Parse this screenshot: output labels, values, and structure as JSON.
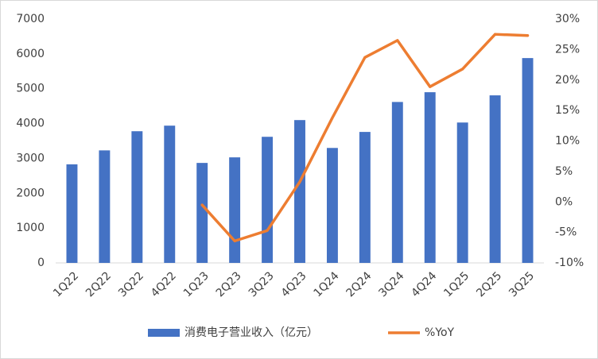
{
  "chart_data": {
    "type": "bar_line",
    "categories": [
      "1Q22",
      "2Q22",
      "3Q22",
      "4Q22",
      "1Q23",
      "2Q23",
      "3Q23",
      "4Q23",
      "1Q24",
      "2Q24",
      "3Q24",
      "4Q24",
      "1Q25",
      "2Q25",
      "3Q25"
    ],
    "series": [
      {
        "name": "消费电子营业收入（亿元）",
        "color": "#4472c4",
        "type": "bar",
        "values": [
          2830,
          3230,
          3780,
          3940,
          2870,
          3030,
          3620,
          4100,
          3300,
          3760,
          4620,
          4900,
          4030,
          4810,
          5880
        ]
      },
      {
        "name": "%YoY",
        "color": "#ed7d31",
        "type": "line",
        "axis": "y2",
        "values": [
          null,
          null,
          null,
          null,
          -0.5,
          -6.4,
          -4.7,
          3.3,
          13.8,
          23.7,
          26.5,
          18.9,
          21.8,
          27.5,
          27.3
        ]
      }
    ],
    "ylim": [
      0,
      7000
    ],
    "yticks": [
      0,
      1000,
      2000,
      3000,
      4000,
      5000,
      6000,
      7000
    ],
    "y2lim": [
      -10,
      30
    ],
    "y2ticks": [
      {
        "value": -10,
        "label": "-10%"
      },
      {
        "value": -5,
        "label": "-5%"
      },
      {
        "value": 0,
        "label": "0%"
      },
      {
        "value": 5,
        "label": "5%"
      },
      {
        "value": 10,
        "label": "10%"
      },
      {
        "value": 15,
        "label": "15%"
      },
      {
        "value": 20,
        "label": "20%"
      },
      {
        "value": 25,
        "label": "25%"
      },
      {
        "value": 30,
        "label": "30%"
      }
    ],
    "legend": "bottom"
  }
}
